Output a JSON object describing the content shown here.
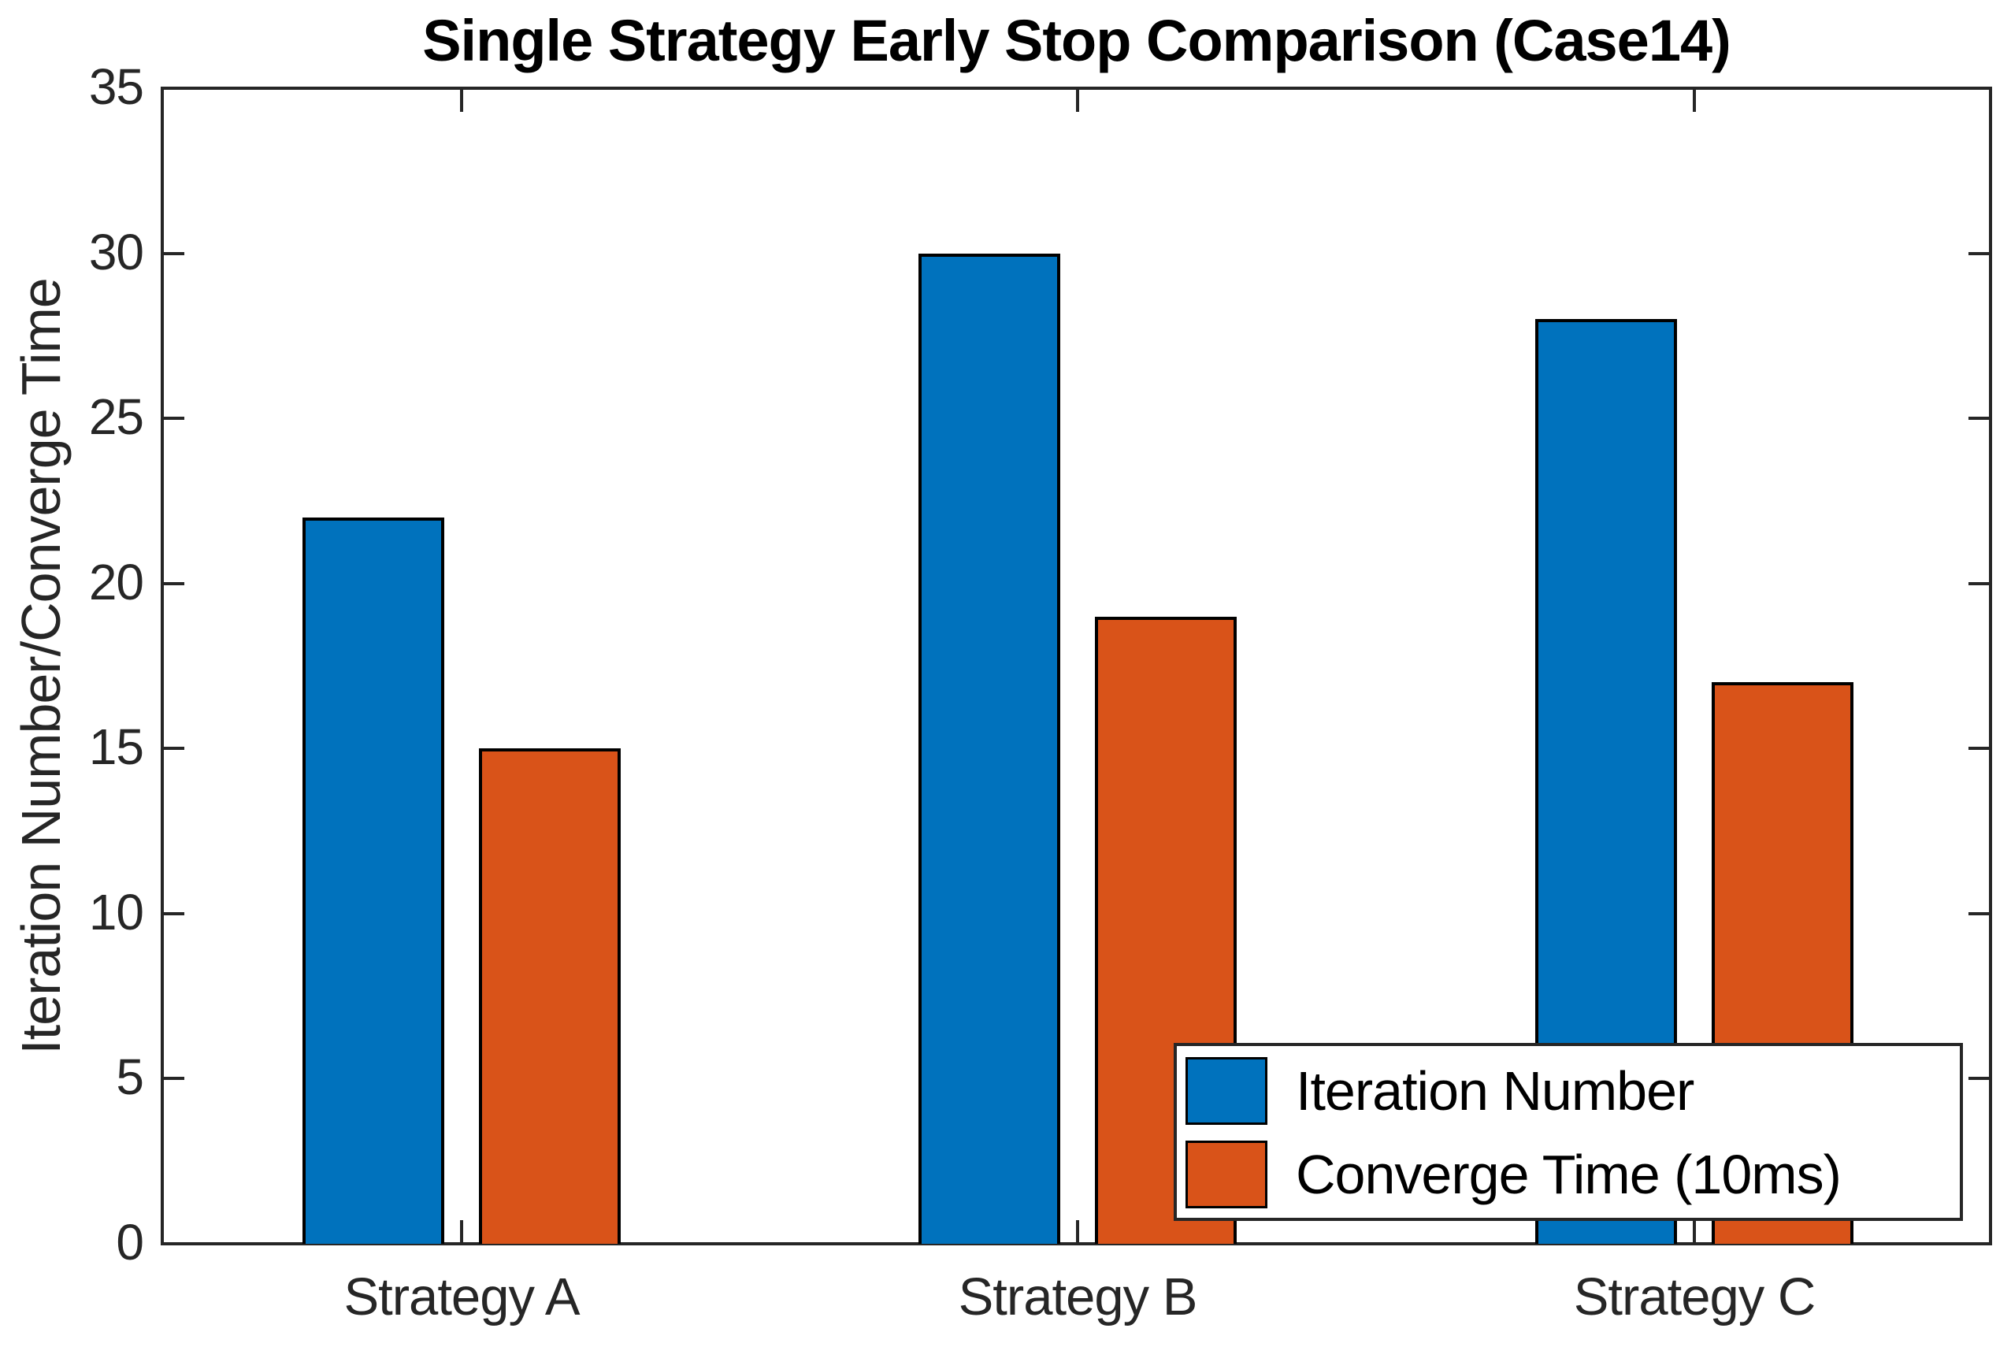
{
  "chart_data": {
    "type": "bar",
    "title": "Single Strategy Early Stop Comparison (Case14)",
    "xlabel": "",
    "ylabel": "Iteration Number/Converge Time",
    "categories": [
      "Strategy A",
      "Strategy B",
      "Strategy C"
    ],
    "series": [
      {
        "name": "Iteration Number",
        "color": "#0072BD",
        "values": [
          22,
          30,
          28
        ]
      },
      {
        "name": "Converge Time (10ms)",
        "color": "#D95319",
        "values": [
          15,
          19,
          17
        ]
      }
    ],
    "ylim": [
      0,
      35
    ],
    "yticks": [
      0,
      5,
      10,
      15,
      20,
      25,
      30,
      35
    ],
    "grid": false,
    "legend_position": "southeast",
    "colors": {
      "bar_edge": "#000000",
      "axis": "#262626",
      "tick_label": "#262626",
      "title": "#000000",
      "background": "#FFFFFF"
    }
  }
}
